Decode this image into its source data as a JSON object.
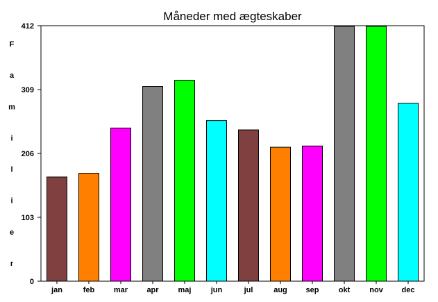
{
  "chart_data": {
    "type": "bar",
    "title": "Måneder med ægteskaber",
    "xlabel": "",
    "ylabel": "Familier",
    "ylim": [
      0,
      412
    ],
    "yticks": [
      0,
      103,
      206,
      309,
      412
    ],
    "grid": false,
    "legend": "none",
    "categories": [
      "jan",
      "feb",
      "mar",
      "apr",
      "maj",
      "jun",
      "jul",
      "aug",
      "sep",
      "okt",
      "nov",
      "dec"
    ],
    "values": [
      168,
      174,
      247,
      314,
      324,
      259,
      244,
      216,
      218,
      411,
      411,
      287
    ],
    "colors": [
      "#804040",
      "#ff8000",
      "#ff00ff",
      "#808080",
      "#00ff00",
      "#00ffff",
      "#804040",
      "#ff8000",
      "#ff00ff",
      "#808080",
      "#00ff00",
      "#00ffff"
    ]
  }
}
